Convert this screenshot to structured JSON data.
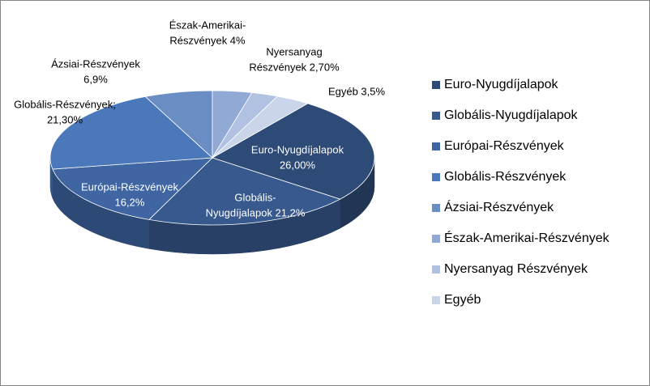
{
  "chart_data": {
    "type": "pie3d",
    "categories": [
      "Euro-Nyugdíjalapok",
      "Globális-Nyugdíjalapok",
      "Európai-Részvények",
      "Globális-Részvények",
      "Ázsiai-Részvények",
      "Észak-Amerikai-Részvények",
      "Nyersanyag Részvények",
      "Egyéb"
    ],
    "values": [
      26,
      21.2,
      16.2,
      21.3,
      6.9,
      4,
      2.7,
      3.5
    ],
    "value_labels": [
      [
        "Euro-Nyugdíjalapok",
        "26,00%"
      ],
      [
        "Globális-",
        "Nyugdíjalapok 21,2%"
      ],
      [
        "Európai-Részvények",
        "16,2%"
      ],
      [
        "Globális-Részvények;",
        "21,30%"
      ],
      [
        "Ázsiai-Részvények",
        "6,9%"
      ],
      [
        "Észak-Amerikai-",
        "Részvények 4%"
      ],
      [
        "Nyersanyag",
        "Részvények 2,70%"
      ],
      [
        "Egyéb 3,5%"
      ]
    ],
    "colors": [
      "#2e4a76",
      "#37598e",
      "#3f66a3",
      "#4a78bb",
      "#6a8dc3",
      "#90a9d5",
      "#b0c1e1",
      "#cad5ea"
    ],
    "legend": "right"
  }
}
